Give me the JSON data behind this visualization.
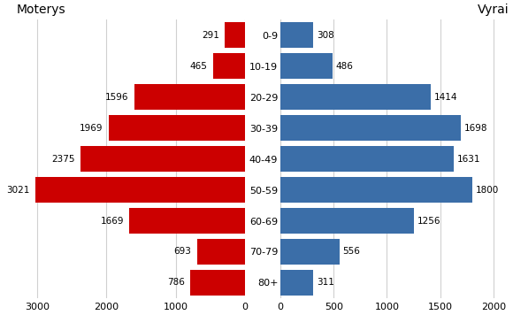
{
  "age_groups": [
    "0-9",
    "10-19",
    "20-29",
    "30-39",
    "40-49",
    "50-59",
    "60-69",
    "70-79",
    "80+"
  ],
  "moterys": [
    291,
    465,
    1596,
    1969,
    2375,
    3021,
    1669,
    693,
    786
  ],
  "vyrai": [
    308,
    486,
    1414,
    1698,
    1631,
    1800,
    1256,
    556,
    311
  ],
  "moterys_color": "#cc0000",
  "vyrai_color": "#3b6ea8",
  "title_left": "Moterys",
  "title_right": "Vyrai",
  "xlim_left": 3300,
  "xlim_right": 2150,
  "background_color": "#ffffff",
  "grid_color": "#d0d0d0",
  "bar_height": 0.82
}
